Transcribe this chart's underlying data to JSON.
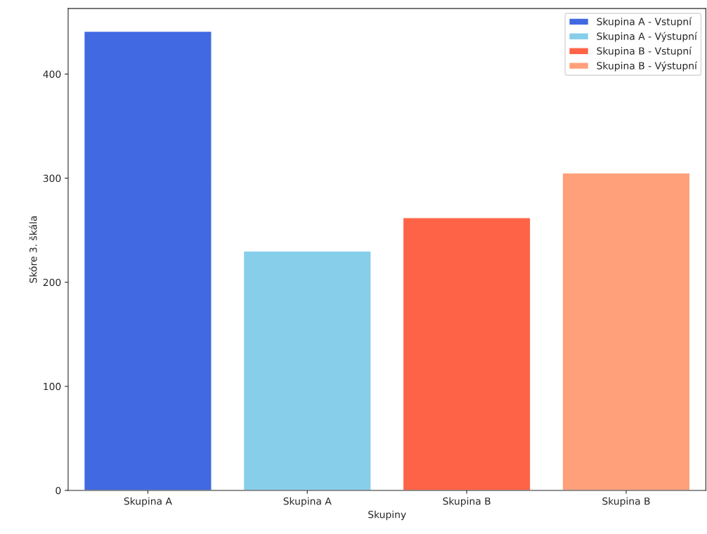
{
  "chart_data": {
    "type": "bar",
    "xlabel": "Skupiny",
    "ylabel": "Skóre 3. škála",
    "categories": [
      "Skupina A",
      "Skupina A",
      "Skupina B",
      "Skupina B"
    ],
    "series": [
      {
        "name": "Skupina A - Vstupní",
        "color": "#4169e1",
        "values": [
          441,
          null,
          null,
          null
        ]
      },
      {
        "name": "Skupina A - Výstupní",
        "color": "#87ceeb",
        "values": [
          null,
          230,
          null,
          null
        ]
      },
      {
        "name": "Skupina B - Vstupní",
        "color": "#ff6347",
        "values": [
          null,
          null,
          262,
          null
        ]
      },
      {
        "name": "Skupina B - Výstupní",
        "color": "#ffa07a",
        "values": [
          null,
          null,
          null,
          305
        ]
      }
    ],
    "ylim": [
      0,
      463
    ],
    "yticks": [
      0,
      100,
      200,
      300,
      400
    ],
    "grid": false,
    "legend": "top right"
  }
}
